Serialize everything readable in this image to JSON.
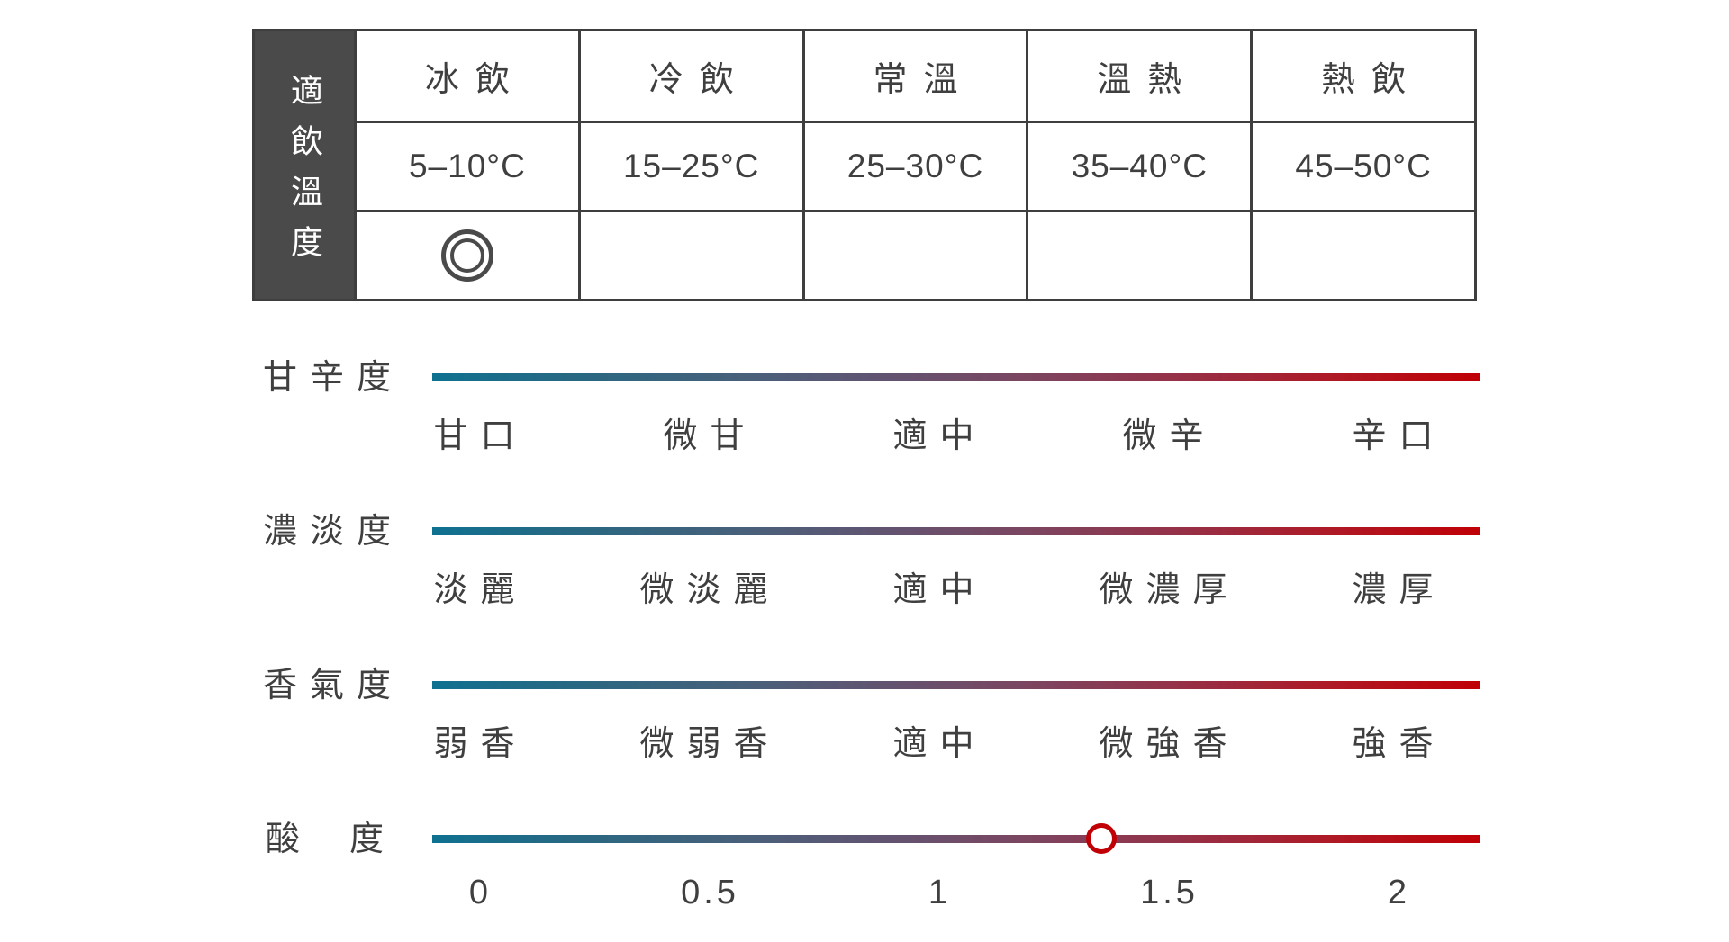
{
  "colors": {
    "table_border": "#3e3e3e",
    "table_header_bg": "#4a4a4a",
    "table_header_text": "#ffffff",
    "body_text": "#3f3f3f",
    "gradient_start": "#0f7190",
    "gradient_mid": "#7c4560",
    "gradient_end": "#c00006",
    "marker_border": "#c00004",
    "marker_fill": "#ffffff"
  },
  "chart_data": [
    {
      "type": "table",
      "title": "適飲溫度",
      "categories": [
        "冰飲",
        "冷飲",
        "常溫",
        "溫熱",
        "熱飲"
      ],
      "temperature_ranges": [
        "5–10°C",
        "15–25°C",
        "25–30°C",
        "35–40°C",
        "45–50°C"
      ],
      "selected_category": "冰飲",
      "selected_marker": "double-circle"
    },
    {
      "type": "gauge",
      "subtype": "gradient-scale",
      "gradient_colors": [
        "#0f7190",
        "#7c4560",
        "#c00006"
      ],
      "gauges": [
        {
          "label": "甘辛度",
          "tick_labels": [
            "甘口",
            "微甘",
            "適中",
            "微辛",
            "辛口"
          ],
          "value": null
        },
        {
          "label": "濃淡度",
          "tick_labels": [
            "淡麗",
            "微淡麗",
            "適中",
            "微濃厚",
            "濃厚"
          ],
          "value": null
        },
        {
          "label": "香氣度",
          "tick_labels": [
            "弱香",
            "微弱香",
            "適中",
            "微強香",
            "強香"
          ],
          "value": null
        },
        {
          "label": "酸度",
          "tick_labels": [
            "0",
            "0.5",
            "1",
            "1.5",
            "2"
          ],
          "axis_range": [
            0,
            2
          ],
          "value": 1.35
        }
      ]
    }
  ]
}
